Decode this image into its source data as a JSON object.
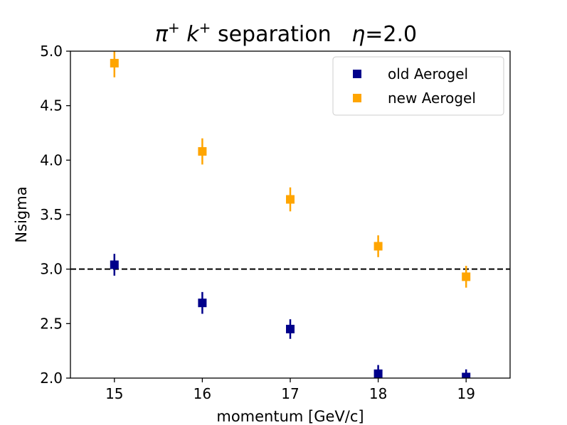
{
  "chart_data": {
    "type": "scatter",
    "title": "π⁺ k⁺ separation   η=2.0",
    "title_parts": {
      "pi": "π",
      "k": "k",
      "plus": "+",
      "separation": "separation",
      "eta": "η",
      "eta_value": "=2.0"
    },
    "xlabel": "momentum [GeV/c]",
    "ylabel": "Nsigma",
    "xlim": [
      14.5,
      19.5
    ],
    "ylim": [
      2.0,
      5.0
    ],
    "x_ticks": [
      15,
      16,
      17,
      18,
      19
    ],
    "x_tick_labels": [
      "15",
      "16",
      "17",
      "18",
      "19"
    ],
    "y_ticks": [
      2.0,
      2.5,
      3.0,
      3.5,
      4.0,
      4.5,
      5.0
    ],
    "y_tick_labels": [
      "2.0",
      "2.5",
      "3.0",
      "3.5",
      "4.0",
      "4.5",
      "5.0"
    ],
    "reference_line": {
      "y": 3.0,
      "style": "dashed",
      "color": "#000000"
    },
    "legend_position": "top-right",
    "series": [
      {
        "name": "old Aerogel",
        "color": "#00008b",
        "marker": "square",
        "x": [
          15,
          16,
          17,
          18,
          19
        ],
        "y": [
          3.04,
          2.69,
          2.45,
          2.04,
          2.01
        ],
        "yerr": [
          0.1,
          0.1,
          0.09,
          0.08,
          0.07
        ]
      },
      {
        "name": "new Aerogel",
        "color": "#ffa500",
        "marker": "square",
        "x": [
          15,
          16,
          17,
          18,
          19
        ],
        "y": [
          4.89,
          4.08,
          3.64,
          3.21,
          2.93
        ],
        "yerr": [
          0.13,
          0.12,
          0.11,
          0.1,
          0.1
        ]
      }
    ]
  }
}
